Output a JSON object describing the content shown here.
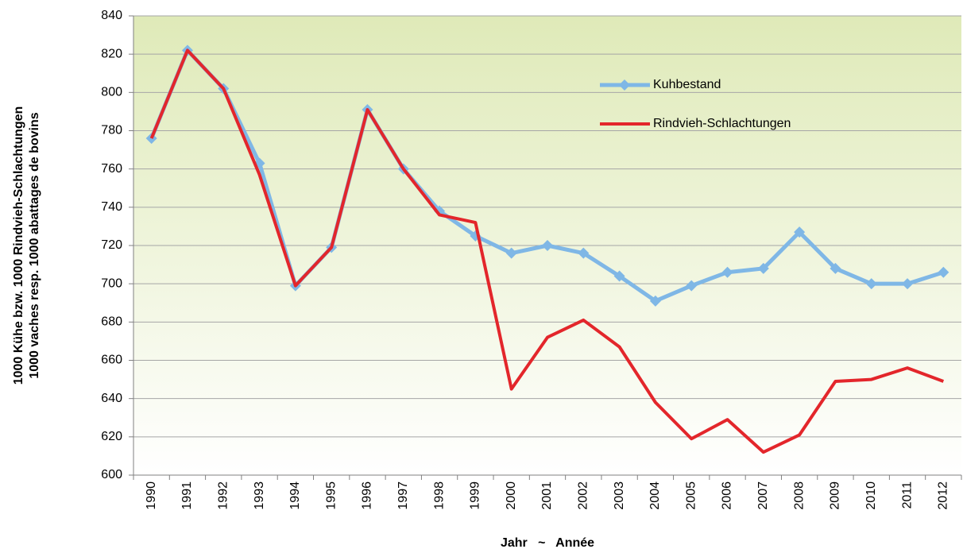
{
  "chart_data": {
    "type": "line",
    "ylabel": [
      "1000 Kühe bzw. 1000 Rindvieh-Schlachtungen",
      "1000 vaches resp. 1000 abattages de bovins"
    ],
    "xlabel": "Jahr   ~   Année",
    "categories": [
      "1990",
      "1991",
      "1992",
      "1993",
      "1994",
      "1995",
      "1996",
      "1997",
      "1998",
      "1999",
      "2000",
      "2001",
      "2002",
      "2003",
      "2004",
      "2005",
      "2006",
      "2007",
      "2008",
      "2009",
      "2010",
      "2011",
      "2012"
    ],
    "series": [
      {
        "name": "Kuhbestand",
        "color": "#7fb7e6",
        "marker": "diamond",
        "values": [
          776,
          822,
          802,
          763,
          699,
          719,
          791,
          760,
          738,
          725,
          716,
          720,
          716,
          704,
          691,
          699,
          706,
          708,
          727,
          708,
          700,
          700,
          706
        ]
      },
      {
        "name": "Rindvieh-Schlachtungen",
        "color": "#e3262b",
        "marker": "none",
        "values": [
          776,
          822,
          802,
          757,
          699,
          719,
          791,
          760,
          736,
          732,
          645,
          672,
          681,
          667,
          638,
          619,
          629,
          612,
          621,
          649,
          650,
          656,
          649
        ]
      }
    ],
    "ylim": [
      600,
      840
    ],
    "yticks": [
      600,
      620,
      640,
      660,
      680,
      700,
      720,
      740,
      760,
      780,
      800,
      820,
      840
    ],
    "grid": true
  }
}
